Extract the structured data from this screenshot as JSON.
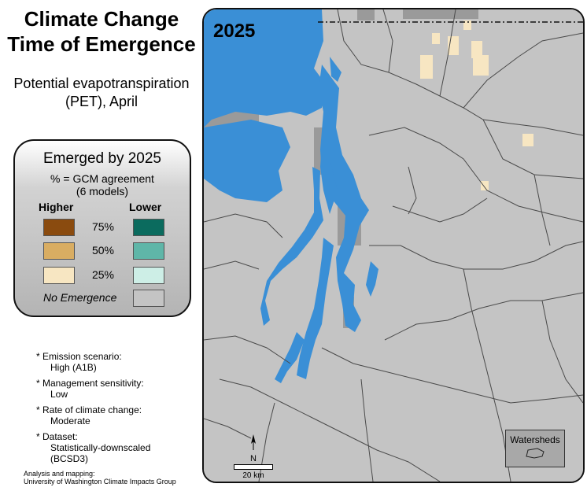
{
  "title": {
    "line1": "Climate Change",
    "line2": "Time of Emergence"
  },
  "subtitle": {
    "line1": "Potential evapotranspiration",
    "line2": "(PET), April"
  },
  "legend": {
    "heading": "Emerged by 2025",
    "sub1": "% = GCM agreement",
    "sub2": "(6 models)",
    "higher_label": "Higher",
    "lower_label": "Lower",
    "rows": [
      {
        "pct": "75%",
        "higher_color": "#8a4b0f",
        "lower_color": "#0b6b5e"
      },
      {
        "pct": "50%",
        "higher_color": "#d9ad62",
        "lower_color": "#5fb6a8"
      },
      {
        "pct": "25%",
        "higher_color": "#f7e6c2",
        "lower_color": "#cdeee6"
      }
    ],
    "no_emergence_label": "No Emergence",
    "no_emergence_color": "#c4c4c4"
  },
  "notes": [
    {
      "label": "* Emission scenario:",
      "value": "High (A1B)"
    },
    {
      "label": "* Management sensitivity:",
      "value": "Low"
    },
    {
      "label": "* Rate of climate change:",
      "value": "Moderate"
    },
    {
      "label": "* Dataset:",
      "value": "Statistically-downscaled",
      "value2": "(BCSD3)"
    }
  ],
  "credit": {
    "line1": "Analysis and mapping:",
    "line2": "University of Washington Climate Impacts Group"
  },
  "map": {
    "year": "2025",
    "watersheds_label": "Watersheds",
    "north_label": "N",
    "scale_label": "20 km",
    "colors": {
      "land": "#c4c4c4",
      "water": "#3a8fd6",
      "masked": "#9a9a9a",
      "emerged_25_higher": "#f7e6c2",
      "boundary": "#4a4a4a"
    }
  }
}
